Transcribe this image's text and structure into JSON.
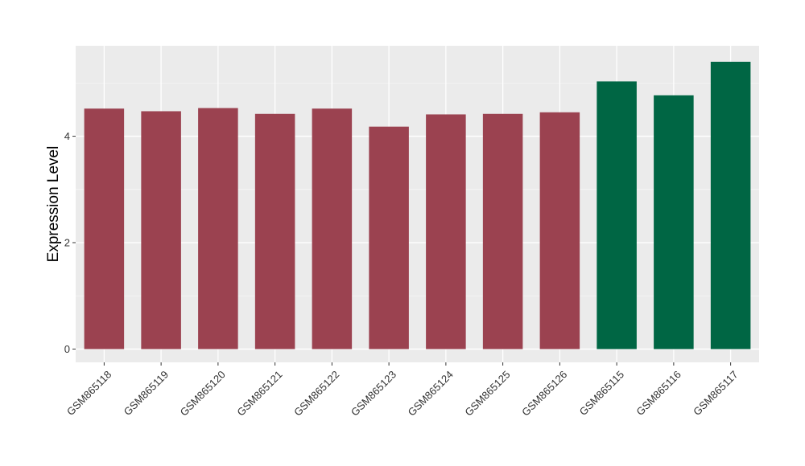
{
  "chart_data": {
    "type": "bar",
    "title": "",
    "xlabel": "",
    "ylabel": "Expression Level",
    "categories": [
      "GSM865118",
      "GSM865119",
      "GSM865120",
      "GSM865121",
      "GSM865122",
      "GSM865123",
      "GSM865124",
      "GSM865125",
      "GSM865126",
      "GSM865115",
      "GSM865116",
      "GSM865117"
    ],
    "values": [
      4.52,
      4.47,
      4.53,
      4.42,
      4.52,
      4.18,
      4.41,
      4.42,
      4.45,
      5.03,
      4.77,
      5.4
    ],
    "groups": [
      1,
      1,
      1,
      1,
      1,
      1,
      1,
      1,
      1,
      2,
      2,
      2
    ],
    "group_colors": {
      "1": "#9b4250",
      "2": "#006644"
    },
    "ylim": [
      -0.25,
      5.7
    ],
    "yticks": [
      0,
      2,
      4
    ],
    "ytick_labels": [
      "0",
      "2",
      "4"
    ],
    "grid": true,
    "panel_background": "#ebebeb",
    "legend": "none"
  }
}
